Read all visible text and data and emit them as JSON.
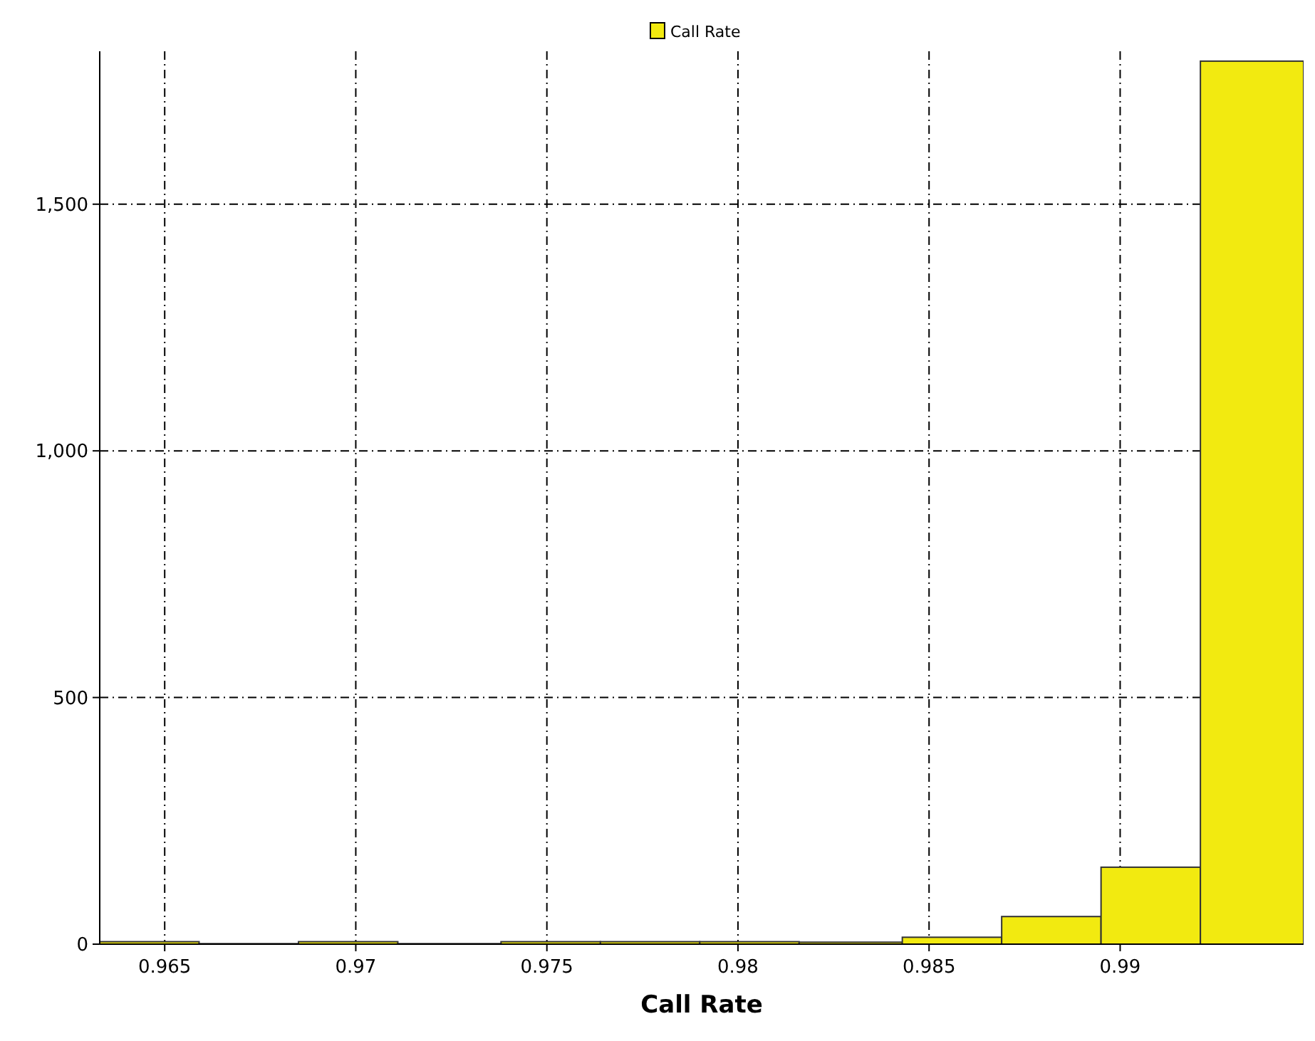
{
  "chart_data": {
    "type": "histogram",
    "xlabel": "Call Rate",
    "bins": [
      0.9633,
      0.9659,
      0.9685,
      0.9711,
      0.9738,
      0.9764,
      0.979,
      0.9816,
      0.9843,
      0.9869,
      0.9895,
      0.9921,
      0.9948
    ],
    "series": [
      {
        "name": "Call Rate",
        "color": "#f2ea10",
        "values": [
          5,
          1,
          5,
          1,
          5,
          5,
          5,
          4,
          14,
          56,
          156,
          1790
        ]
      }
    ],
    "xlim": [
      0.9633,
      0.9948
    ],
    "xticks": [
      0.965,
      0.97,
      0.975,
      0.98,
      0.985,
      0.99
    ],
    "ylim": [
      0,
      1810
    ],
    "yticks": [
      0,
      500,
      {
        "value": 1000,
        "label": "1,000"
      },
      {
        "value": 1500,
        "label": "1,500"
      }
    ],
    "grid": true,
    "legend": "top"
  }
}
